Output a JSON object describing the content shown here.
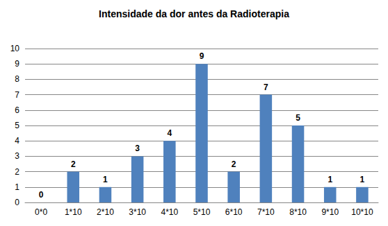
{
  "chart_data": {
    "type": "bar",
    "title": "Intensidade da dor antes da Radioterapia",
    "categories": [
      "0*0",
      "1*10",
      "2*10",
      "3*10",
      "4*10",
      "5*10",
      "6*10",
      "7*10",
      "8*10",
      "9*10",
      "10*10"
    ],
    "values": [
      0,
      2,
      1,
      3,
      4,
      9,
      2,
      7,
      5,
      1,
      1
    ],
    "color": "#4f81bd",
    "ylim": [
      0,
      10
    ],
    "yticks": [
      0,
      1,
      2,
      3,
      4,
      5,
      6,
      7,
      8,
      9,
      10
    ],
    "grid": true,
    "data_labels": true
  }
}
